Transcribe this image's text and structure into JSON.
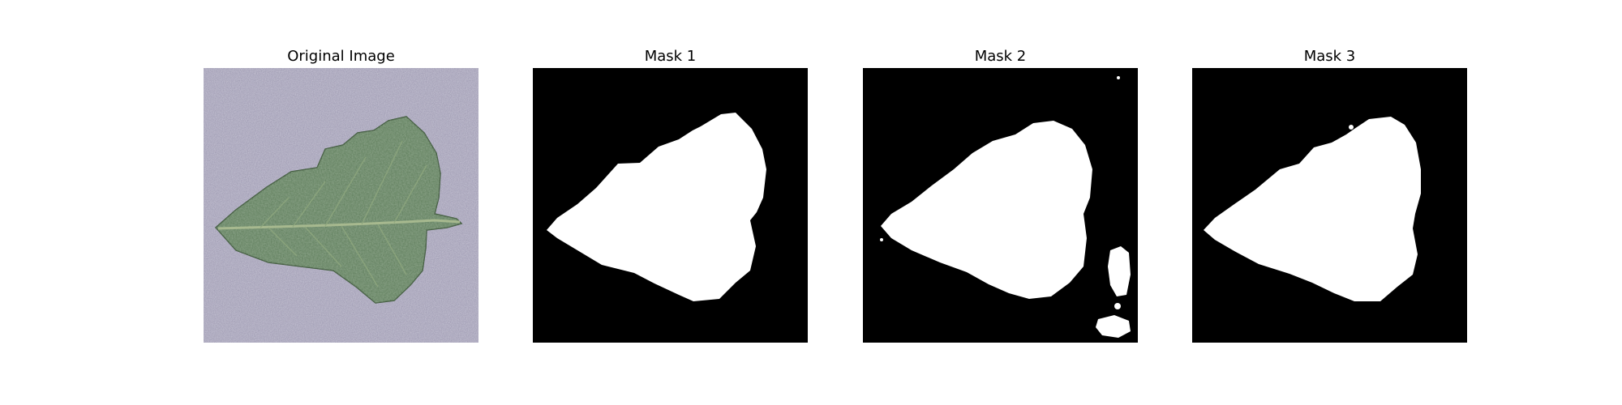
{
  "figure": {
    "panels": [
      {
        "title": "Original Image"
      },
      {
        "title": "Mask 1"
      },
      {
        "title": "Mask 2"
      },
      {
        "title": "Mask 3"
      }
    ]
  },
  "colors": {
    "background": "#ffffff",
    "paper_surface": "#9a96ae",
    "leaf_green": "#5e7d5b",
    "mask_background": "#000000",
    "mask_foreground": "#ffffff"
  }
}
